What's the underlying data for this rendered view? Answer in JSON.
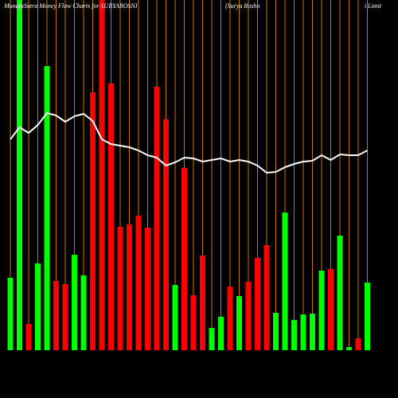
{
  "chart_data": {
    "type": "bar",
    "title": "MunafaSutra  Money Flow  Charts for SURYAROSNI",
    "subtitle": "(Surya  Roshn",
    "annotation": "i  Limit",
    "ylim": [
      0,
      440
    ],
    "grid": true,
    "grid_color": "#c87800",
    "series": [
      {
        "name": "money flow",
        "type": "bar",
        "values": [
          91,
          440,
          33,
          109,
          357,
          87,
          83,
          120,
          94,
          324,
          440,
          335,
          155,
          158,
          169,
          154,
          331,
          290,
          82,
          229,
          69,
          119,
          28,
          42,
          80,
          68,
          86,
          116,
          132,
          47,
          173,
          38,
          45,
          46,
          100,
          102,
          144,
          4,
          15,
          85
        ],
        "colors": [
          "#00ff00",
          "#00ff00",
          "#ff0000",
          "#00ff00",
          "#00ff00",
          "#ff0000",
          "#ff0000",
          "#00ff00",
          "#00ff00",
          "#ff0000",
          "#ff0000",
          "#ff0000",
          "#ff0000",
          "#ff0000",
          "#ff0000",
          "#ff0000",
          "#ff0000",
          "#ff0000",
          "#00ff00",
          "#ff0000",
          "#ff0000",
          "#ff0000",
          "#00ff00",
          "#00ff00",
          "#ff0000",
          "#00ff00",
          "#ff0000",
          "#ff0000",
          "#ff0000",
          "#00ff00",
          "#00ff00",
          "#00ff00",
          "#00ff00",
          "#00ff00",
          "#00ff00",
          "#ff0000",
          "#00ff00",
          "#00ff00",
          "#ff0000",
          "#00ff00"
        ]
      },
      {
        "name": "price",
        "type": "line",
        "color": "#ffffff",
        "values": [
          265,
          280,
          273,
          283,
          298,
          295,
          287,
          294,
          297,
          288,
          265,
          259,
          257,
          255,
          251,
          245,
          242,
          232,
          236,
          242,
          241,
          237,
          239,
          241,
          237,
          239,
          237,
          232,
          223,
          224,
          230,
          234,
          237,
          238,
          245,
          239,
          246,
          245,
          245,
          251
        ]
      }
    ]
  }
}
